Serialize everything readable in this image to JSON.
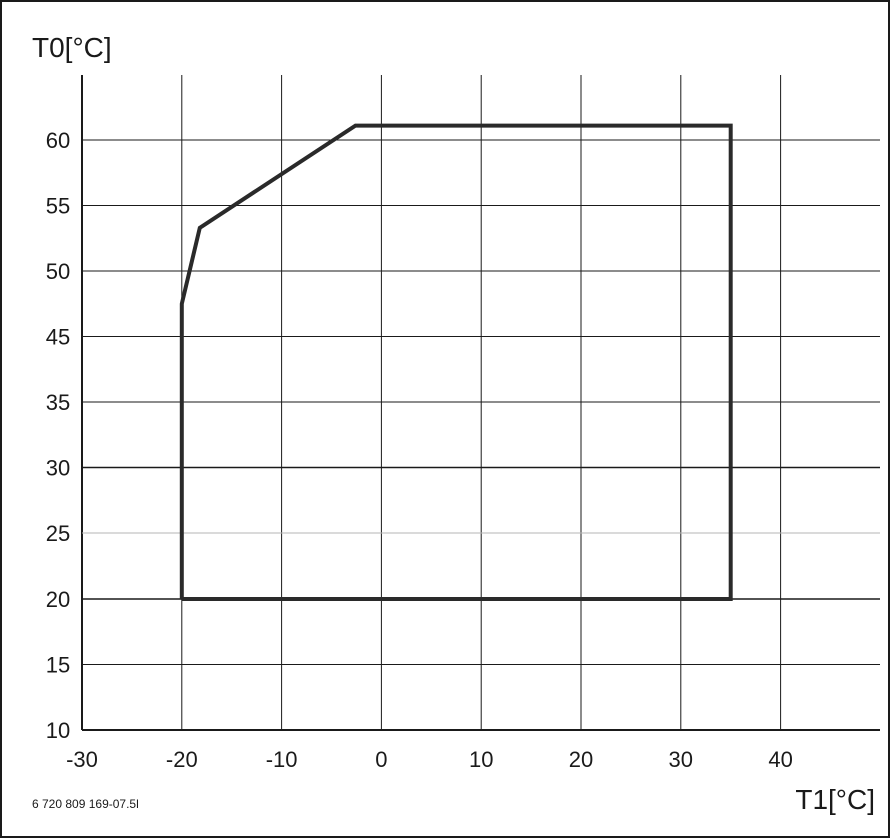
{
  "figure_id": "6 720 809 169-07.5l",
  "chart_data": {
    "type": "line",
    "xlabel": "T1[°C]",
    "ylabel": "T0[°C]",
    "xlim": [
      -30,
      50
    ],
    "x_ticks": [
      -30,
      -20,
      -10,
      0,
      10,
      20,
      30,
      40
    ],
    "y_ticks": [
      10,
      15,
      20,
      25,
      30,
      35,
      45,
      50,
      55,
      60
    ],
    "grid": true,
    "series": [
      {
        "x": [
          -20,
          -20,
          -18.2,
          -2.6,
          35,
          35,
          -20
        ],
        "y": [
          20,
          47.5,
          53.3,
          61.1,
          61.1,
          20,
          20
        ],
        "color": "#2a2a2a"
      }
    ]
  }
}
